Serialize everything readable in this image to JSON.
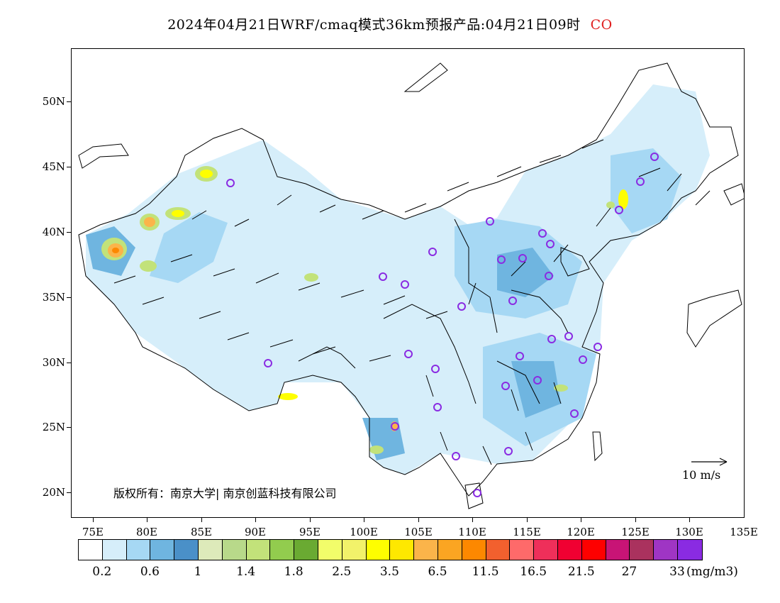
{
  "title": {
    "text": "2024年04月21日WRF/cmaq模式36km预报产品:04月21日09时",
    "species": "CO",
    "species_color": "#e02020"
  },
  "axes": {
    "lat_labels": [
      "50N",
      "45N",
      "40N",
      "35N",
      "30N",
      "25N",
      "20N"
    ],
    "lon_labels": [
      "75E",
      "80E",
      "85E",
      "90E",
      "95E",
      "100E",
      "105E",
      "110E",
      "115E",
      "120E",
      "125E",
      "130E",
      "135E"
    ]
  },
  "copyright": "版权所有：南京大学| 南京创蓝科技有限公司",
  "wind_scale": {
    "label": "10 m/s",
    "icon": "arrow-right-icon"
  },
  "colorbar": {
    "colors": [
      "#ffffff",
      "#d6eefa",
      "#a6d8f4",
      "#6fb5e0",
      "#4a90c8",
      "#ddeaba",
      "#b8d98a",
      "#c2e27a",
      "#92cc4e",
      "#6aaa32",
      "#f2fd6a",
      "#f2f26a",
      "#fefe00",
      "#fee800",
      "#fbb44a",
      "#fba522",
      "#fd8800",
      "#f2602e",
      "#fe6a6a",
      "#ef2f5a",
      "#f00032",
      "#fe0000",
      "#c81476",
      "#aa325e",
      "#9f35c4",
      "#8a2be2"
    ],
    "labels": [
      "0.2",
      "0.6",
      "1",
      "1.4",
      "1.8",
      "2.5",
      "3.5",
      "6.5",
      "11.5",
      "16.5",
      "21.5",
      "27",
      "33"
    ],
    "unit": "(mg/m3)"
  },
  "map_icons": [
    "china-boundary-icon",
    "coastline-icon",
    "wind-vector-icon",
    "city-marker-icon"
  ]
}
